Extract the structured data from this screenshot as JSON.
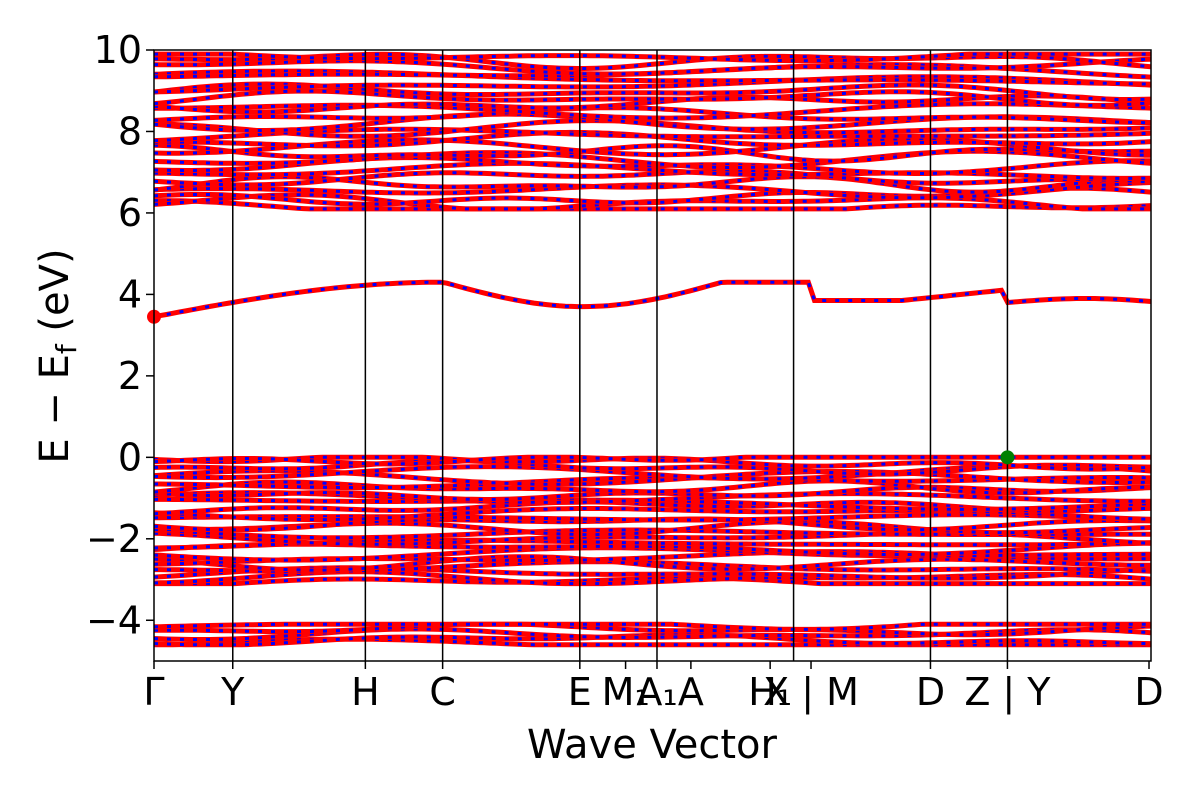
{
  "chart_data": {
    "type": "line",
    "title": "",
    "xlabel": "Wave Vector",
    "ylabel": "E − E_f (eV)",
    "ylabel_main": "E − E",
    "ylabel_sub": "f",
    "ylabel_unit": " (eV)",
    "ylim": [
      -5,
      10
    ],
    "yticks": [
      -4,
      -2,
      0,
      2,
      4,
      6,
      8,
      10
    ],
    "ytick_labels": [
      "−4",
      "−2",
      "0",
      "2",
      "4",
      "6",
      "8",
      "10"
    ],
    "xlim": [
      0,
      1
    ],
    "grid": false,
    "legend": "none",
    "colors": {
      "band_primary": "#ff0000",
      "band_secondary": "#0000ff",
      "vbm_marker": "#008000",
      "cbm_marker": "#ff0000"
    },
    "kpoints": [
      {
        "label": "Γ",
        "x": 0.0
      },
      {
        "label": "Y",
        "x": 0.079
      },
      {
        "label": "H",
        "x": 0.212
      },
      {
        "label": "C",
        "x": 0.2895
      },
      {
        "label": "E",
        "x": 0.4271
      },
      {
        "label": "M₁",
        "x": 0.473
      },
      {
        "label": "A₁",
        "x": 0.5045
      },
      {
        "label": "A",
        "x": 0.5385
      },
      {
        "label": "H₁",
        "x": 0.618
      },
      {
        "label": "X | M",
        "x": 0.659
      },
      {
        "label": "D",
        "x": 0.7788
      },
      {
        "label": "Z | Y",
        "x": 0.856
      },
      {
        "label": "D",
        "x": 0.998
      }
    ],
    "vlines": [
      0.079,
      0.212,
      0.2895,
      0.4271,
      0.5045,
      0.6415,
      0.7788,
      0.856
    ],
    "markers": [
      {
        "name": "conduction-band-minimum",
        "x": 0.0,
        "y": 3.45
      },
      {
        "name": "valence-band-maximum",
        "x": 0.856,
        "y": 0.0
      }
    ],
    "band_groups": [
      {
        "name": "deep-valence",
        "count": 5,
        "emin": -4.6,
        "emax": -4.1
      },
      {
        "name": "valence",
        "count": 26,
        "emin": -3.1,
        "emax": 0.0
      },
      {
        "name": "lowest-conduction",
        "count": 1,
        "emin": 3.45,
        "emax": 4.3
      },
      {
        "name": "upper-conduction",
        "count": 26,
        "emin": 6.1,
        "emax": 9.9
      }
    ]
  }
}
